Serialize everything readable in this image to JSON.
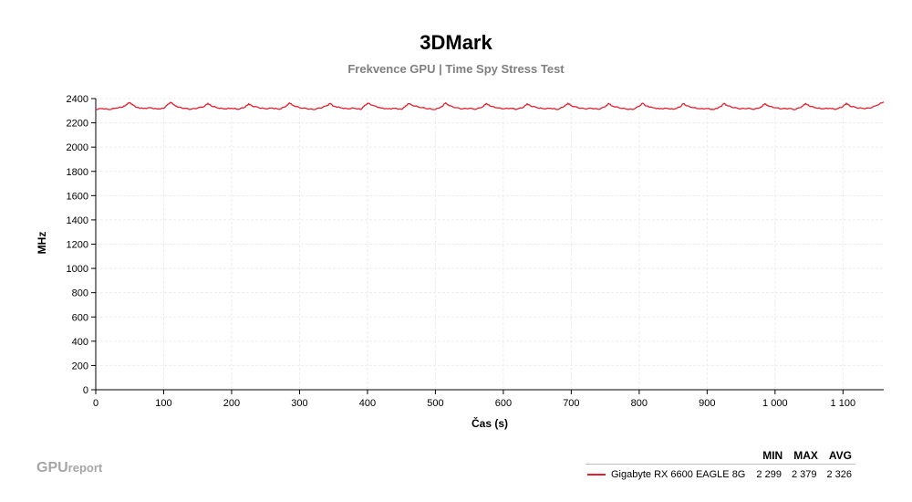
{
  "chart_data": {
    "type": "line",
    "title": "3DMark",
    "subtitle": "Frekvence GPU | Time Spy Stress Test",
    "xlabel": "Čas (s)",
    "ylabel": "MHz",
    "xlim": [
      0,
      1160
    ],
    "ylim": [
      0,
      2400
    ],
    "xticks": [
      0,
      100,
      200,
      300,
      400,
      500,
      600,
      700,
      800,
      900,
      1000,
      1100
    ],
    "xtick_labels": [
      "0",
      "100",
      "200",
      "300",
      "400",
      "500",
      "600",
      "700",
      "800",
      "900",
      "1 000",
      "1 100"
    ],
    "yticks": [
      0,
      200,
      400,
      600,
      800,
      1000,
      1200,
      1400,
      1600,
      1800,
      2000,
      2200,
      2400
    ],
    "ytick_labels": [
      "0",
      "200",
      "400",
      "600",
      "800",
      "1000",
      "1200",
      "1400",
      "1600",
      "1800",
      "2000",
      "2200",
      "2400"
    ],
    "grid": true,
    "legend_position": "bottom-right",
    "legend_columns": [
      "MIN",
      "MAX",
      "AVG"
    ],
    "series": [
      {
        "name": "Gigabyte RX 6600 EAGLE 8G",
        "color": "#e4202e",
        "min": "2 299",
        "max": "2 379",
        "avg": "2 326",
        "x": [
          0,
          10,
          20,
          30,
          40,
          45,
          50,
          55,
          60,
          70,
          80,
          90,
          100,
          105,
          110,
          115,
          120,
          130,
          140,
          150,
          160,
          165,
          170,
          180,
          190,
          200,
          210,
          220,
          225,
          230,
          240,
          250,
          260,
          270,
          280,
          285,
          290,
          300,
          310,
          320,
          330,
          340,
          345,
          350,
          360,
          370,
          380,
          390,
          395,
          400,
          410,
          420,
          430,
          440,
          450,
          455,
          460,
          470,
          480,
          490,
          500,
          510,
          515,
          520,
          530,
          540,
          550,
          560,
          570,
          575,
          580,
          590,
          600,
          610,
          620,
          630,
          635,
          640,
          650,
          660,
          670,
          680,
          690,
          695,
          700,
          710,
          720,
          730,
          740,
          750,
          755,
          760,
          770,
          780,
          790,
          800,
          805,
          810,
          820,
          830,
          840,
          850,
          860,
          865,
          870,
          880,
          890,
          900,
          910,
          920,
          925,
          930,
          940,
          950,
          960,
          970,
          980,
          985,
          990,
          1000,
          1010,
          1020,
          1030,
          1040,
          1045,
          1050,
          1060,
          1070,
          1080,
          1090,
          1100,
          1105,
          1110,
          1120,
          1130,
          1140,
          1150,
          1160
        ],
        "y": [
          2312,
          2318,
          2310,
          2322,
          2330,
          2350,
          2368,
          2345,
          2328,
          2318,
          2325,
          2314,
          2320,
          2345,
          2370,
          2350,
          2330,
          2320,
          2312,
          2322,
          2335,
          2362,
          2340,
          2322,
          2315,
          2320,
          2312,
          2330,
          2358,
          2340,
          2325,
          2316,
          2322,
          2312,
          2335,
          2365,
          2345,
          2325,
          2318,
          2310,
          2322,
          2340,
          2360,
          2338,
          2325,
          2316,
          2322,
          2310,
          2336,
          2362,
          2340,
          2322,
          2315,
          2320,
          2312,
          2330,
          2358,
          2338,
          2325,
          2316,
          2310,
          2336,
          2365,
          2342,
          2325,
          2315,
          2320,
          2312,
          2334,
          2360,
          2340,
          2325,
          2316,
          2320,
          2312,
          2330,
          2358,
          2340,
          2325,
          2316,
          2320,
          2310,
          2336,
          2362,
          2342,
          2325,
          2316,
          2320,
          2312,
          2332,
          2360,
          2340,
          2325,
          2315,
          2310,
          2336,
          2362,
          2340,
          2325,
          2316,
          2320,
          2312,
          2330,
          2358,
          2340,
          2325,
          2316,
          2318,
          2310,
          2334,
          2360,
          2340,
          2325,
          2316,
          2320,
          2312,
          2332,
          2358,
          2338,
          2325,
          2316,
          2318,
          2310,
          2336,
          2360,
          2340,
          2324,
          2316,
          2320,
          2312,
          2334,
          2362,
          2340,
          2325,
          2318,
          2322,
          2345,
          2372
        ]
      }
    ]
  },
  "branding": {
    "gpu": "GPU",
    "report": "report"
  }
}
